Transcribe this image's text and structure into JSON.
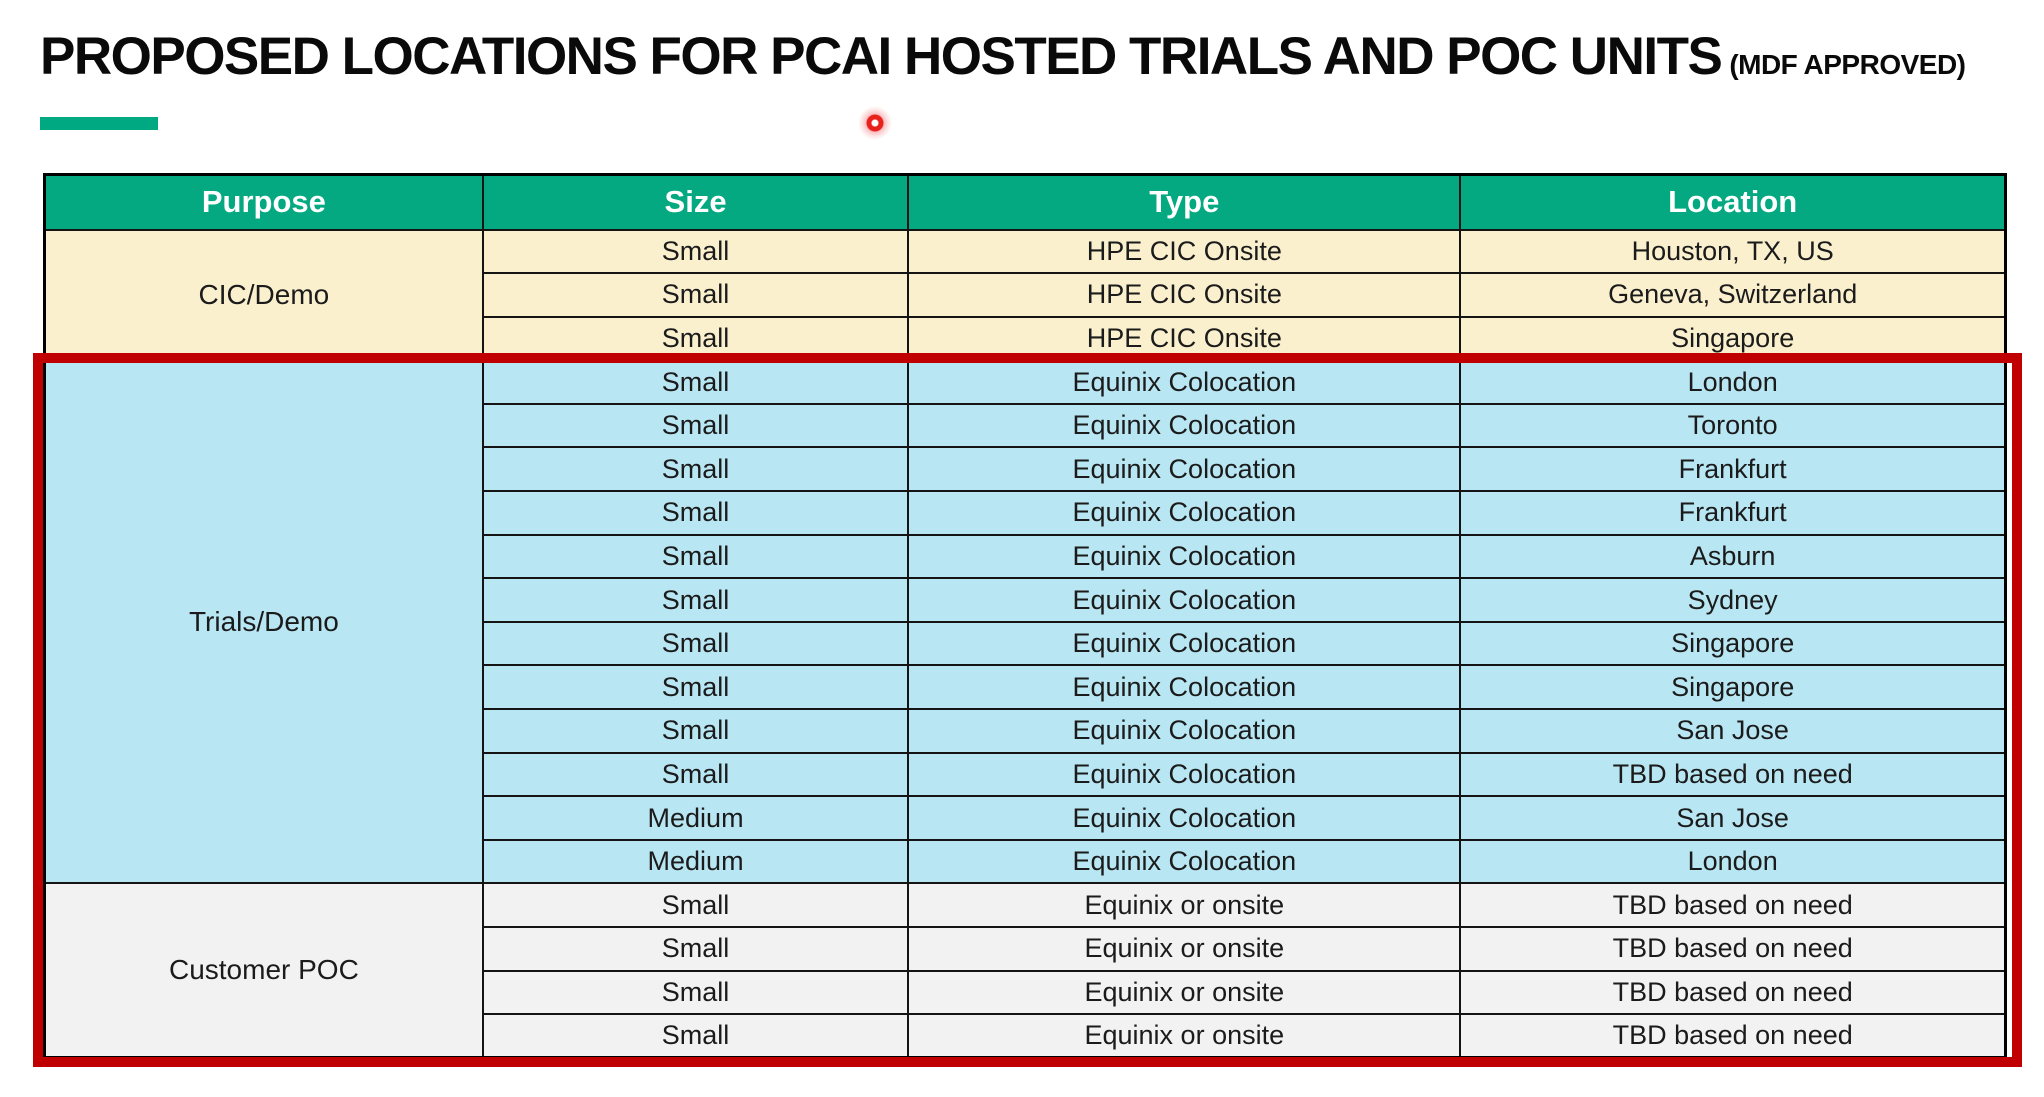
{
  "title": {
    "main": "PROPOSED LOCATIONS FOR PCAI HOSTED TRIALS AND POC UNITS",
    "suffix": "(MDF APPROVED)"
  },
  "accent": {
    "underline_color": "#01A982",
    "laser_pointer_color": "#E8211D",
    "highlight_border_color": "#C00000"
  },
  "table": {
    "headers": [
      "Purpose",
      "Size",
      "Type",
      "Location"
    ],
    "header_bg": "#04A981",
    "header_text_color": "#FFFFFF",
    "sections": [
      {
        "purpose": "CIC/Demo",
        "bg": "#FAF0CE",
        "highlighted": false,
        "rows": [
          [
            "Small",
            "HPE CIC Onsite",
            "Houston, TX, US"
          ],
          [
            "Small",
            "HPE CIC Onsite",
            "Geneva, Switzerland"
          ],
          [
            "Small",
            "HPE CIC Onsite",
            "Singapore"
          ]
        ]
      },
      {
        "purpose": "Trials/Demo",
        "bg": "#B8E6F3",
        "highlighted": true,
        "rows": [
          [
            "Small",
            "Equinix Colocation",
            "London"
          ],
          [
            "Small",
            "Equinix Colocation",
            "Toronto"
          ],
          [
            "Small",
            "Equinix Colocation",
            "Frankfurt"
          ],
          [
            "Small",
            "Equinix Colocation",
            "Frankfurt"
          ],
          [
            "Small",
            "Equinix Colocation",
            "Asburn"
          ],
          [
            "Small",
            "Equinix Colocation",
            "Sydney"
          ],
          [
            "Small",
            "Equinix Colocation",
            "Singapore"
          ],
          [
            "Small",
            "Equinix Colocation",
            "Singapore"
          ],
          [
            "Small",
            "Equinix Colocation",
            "San Jose"
          ],
          [
            "Small",
            "Equinix Colocation",
            "TBD based on need"
          ],
          [
            "Medium",
            "Equinix Colocation",
            "San Jose"
          ],
          [
            "Medium",
            "Equinix Colocation",
            "London"
          ]
        ]
      },
      {
        "purpose": "Customer POC",
        "bg": "#F2F2F2",
        "highlighted": true,
        "rows": [
          [
            "Small",
            "Equinix or onsite",
            "TBD based on need"
          ],
          [
            "Small",
            "Equinix or onsite",
            "TBD based on need"
          ],
          [
            "Small",
            "Equinix or onsite",
            "TBD based on need"
          ],
          [
            "Small",
            "Equinix or onsite",
            "TBD based on need"
          ]
        ]
      }
    ]
  }
}
